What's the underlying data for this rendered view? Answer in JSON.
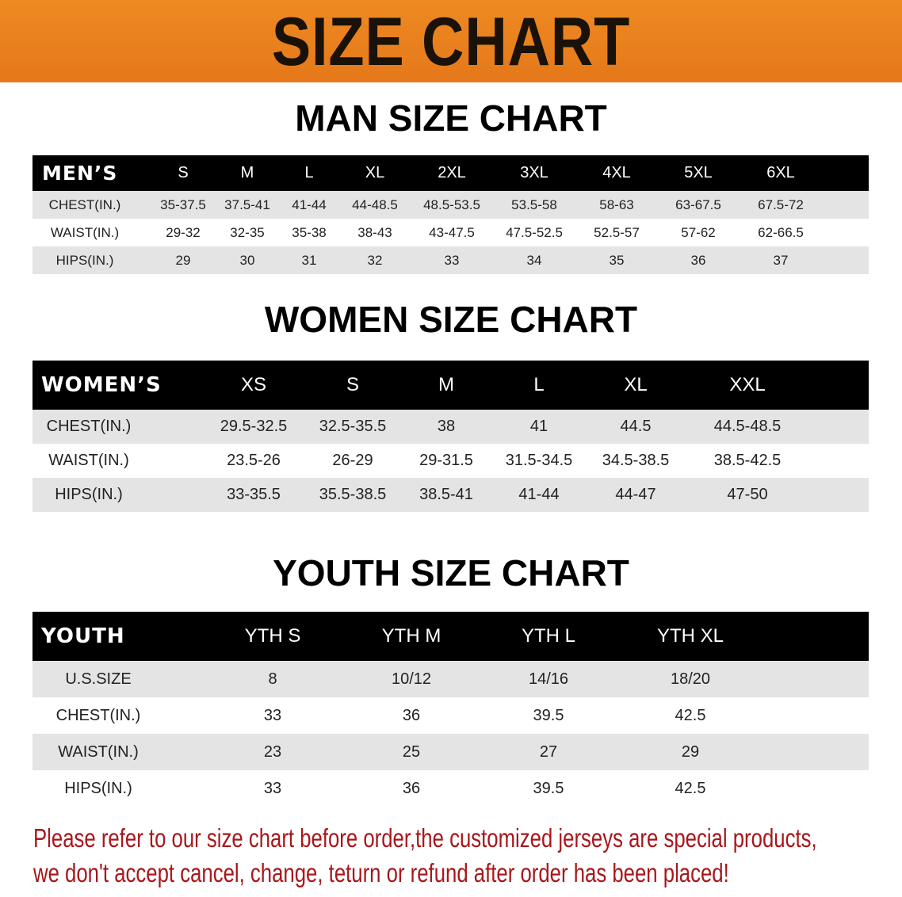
{
  "banner": {
    "title": "SIZE CHART",
    "color": "#e8801d"
  },
  "men": {
    "title": "MAN SIZE CHART",
    "header": [
      "MEN’S",
      "S",
      "M",
      "L",
      "XL",
      "2XL",
      "3XL",
      "4XL",
      "5XL",
      "6XL"
    ],
    "rows": [
      [
        "CHEST(IN.)",
        "35-37.5",
        "37.5-41",
        "41-44",
        "44-48.5",
        "48.5-53.5",
        "53.5-58",
        "58-63",
        "63-67.5",
        "67.5-72"
      ],
      [
        "WAIST(IN.)",
        "29-32",
        "32-35",
        "35-38",
        "38-43",
        "43-47.5",
        "47.5-52.5",
        "52.5-57",
        "57-62",
        "62-66.5"
      ],
      [
        "HIPS(IN.)",
        "29",
        "30",
        "31",
        "32",
        "33",
        "34",
        "35",
        "36",
        "37"
      ]
    ]
  },
  "women": {
    "title": "WOMEN SIZE CHART",
    "header": [
      "WOMEN’S",
      "XS",
      "S",
      "M",
      "L",
      "XL",
      "XXL"
    ],
    "rows": [
      [
        "CHEST(IN.)",
        "29.5-32.5",
        "32.5-35.5",
        "38",
        "41",
        "44.5",
        "44.5-48.5"
      ],
      [
        "WAIST(IN.)",
        "23.5-26",
        "26-29",
        "29-31.5",
        "31.5-34.5",
        "34.5-38.5",
        "38.5-42.5"
      ],
      [
        "HIPS(IN.)",
        "33-35.5",
        "35.5-38.5",
        "38.5-41",
        "41-44",
        "44-47",
        "47-50"
      ]
    ]
  },
  "youth": {
    "title": "YOUTH SIZE CHART",
    "header": [
      "YOUTH",
      "YTH S",
      "YTH M",
      "YTH L",
      "YTH XL"
    ],
    "rows": [
      [
        "U.S.SIZE",
        "8",
        "10/12",
        "14/16",
        "18/20"
      ],
      [
        "CHEST(IN.)",
        "33",
        "36",
        "39.5",
        "42.5"
      ],
      [
        "WAIST(IN.)",
        "23",
        "25",
        "27",
        "29"
      ],
      [
        "HIPS(IN.)",
        "33",
        "36",
        "39.5",
        "42.5"
      ]
    ]
  },
  "notice": {
    "line1": "Please refer to our size chart before order,the customized jerseys are special products,",
    "line2": "we don't accept cancel, change, teturn or refund after order has been placed!",
    "color": "#a8171b"
  }
}
